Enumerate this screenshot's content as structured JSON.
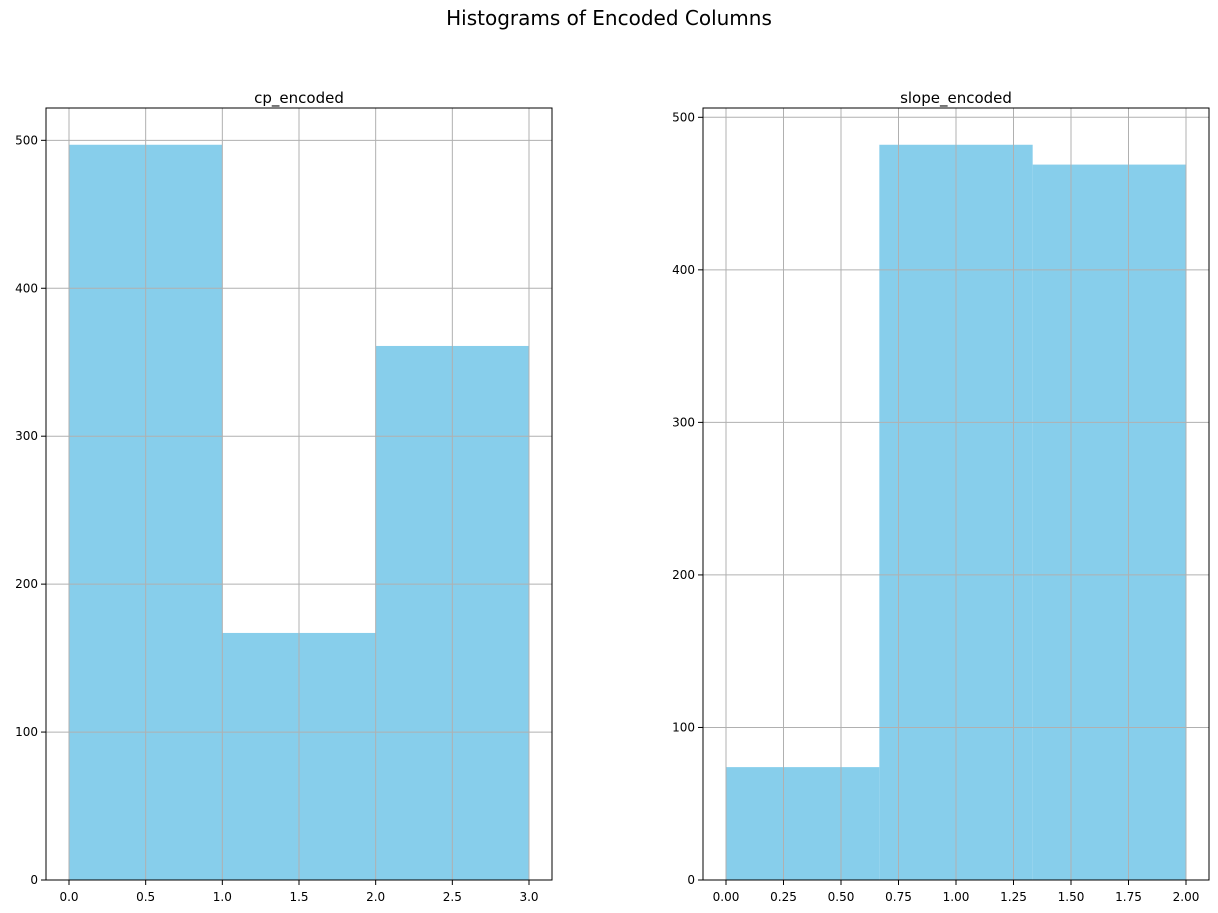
{
  "figure": {
    "suptitle": "Histograms of Encoded Columns"
  },
  "colors": {
    "bar": "#87ceeb",
    "grid": "#b0b0b0"
  },
  "chart_data": [
    {
      "type": "bar",
      "title": "cp_encoded",
      "bins": [
        {
          "x0": 0.0,
          "x1": 1.0,
          "value": 497
        },
        {
          "x0": 1.0,
          "x1": 2.0,
          "value": 167
        },
        {
          "x0": 2.0,
          "x1": 3.0,
          "value": 361
        }
      ],
      "xlim": [
        -0.15,
        3.15
      ],
      "ylim": [
        0,
        521.85
      ],
      "xticks": [
        0.0,
        0.5,
        1.0,
        1.5,
        2.0,
        2.5,
        3.0
      ],
      "xtick_labels": [
        "0.0",
        "0.5",
        "1.0",
        "1.5",
        "2.0",
        "2.5",
        "3.0"
      ],
      "yticks": [
        0,
        100,
        200,
        300,
        400,
        500
      ],
      "ytick_labels": [
        "0",
        "100",
        "200",
        "300",
        "400",
        "500"
      ],
      "grid": true
    },
    {
      "type": "bar",
      "title": "slope_encoded",
      "bins": [
        {
          "x0": 0.0,
          "x1": 0.6667,
          "value": 74
        },
        {
          "x0": 0.6667,
          "x1": 1.3333,
          "value": 482
        },
        {
          "x0": 1.3333,
          "x1": 2.0,
          "value": 469
        }
      ],
      "xlim": [
        -0.1,
        2.1
      ],
      "ylim": [
        0,
        506.1
      ],
      "xticks": [
        0.0,
        0.25,
        0.5,
        0.75,
        1.0,
        1.25,
        1.5,
        1.75,
        2.0
      ],
      "xtick_labels": [
        "0.00",
        "0.25",
        "0.50",
        "0.75",
        "1.00",
        "1.25",
        "1.50",
        "1.75",
        "2.00"
      ],
      "yticks": [
        0,
        100,
        200,
        300,
        400,
        500
      ],
      "ytick_labels": [
        "0",
        "100",
        "200",
        "300",
        "400",
        "500"
      ],
      "grid": true
    }
  ]
}
